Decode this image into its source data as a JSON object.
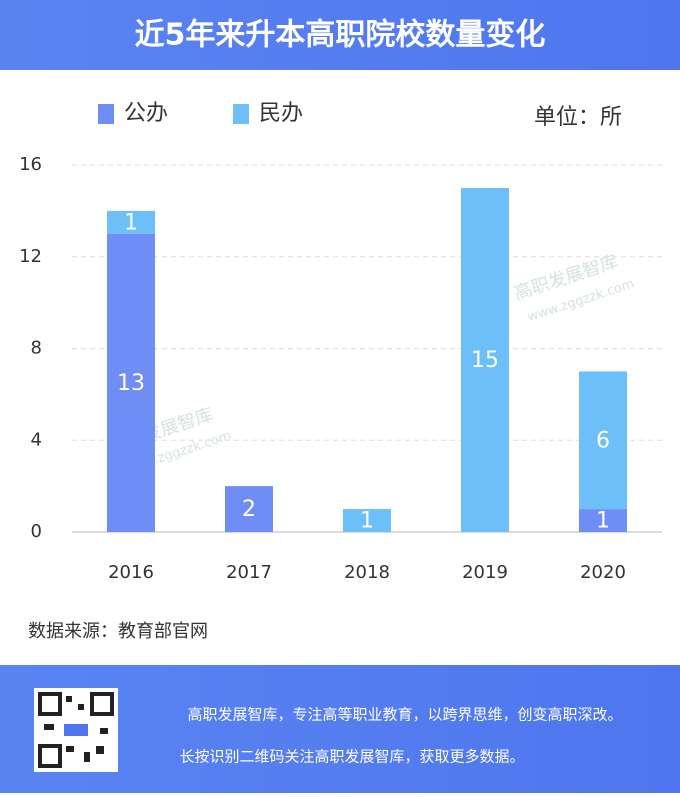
{
  "chart_data": {
    "type": "stacked_bar",
    "title": "近5年来升本高职院校数量变化",
    "unit_label": "单位：所",
    "categories": [
      "2016",
      "2017",
      "2018",
      "2019",
      "2020"
    ],
    "series": [
      {
        "name": "公办",
        "color": "#6f8ef5",
        "values": [
          13,
          2,
          0,
          0,
          1
        ]
      },
      {
        "name": "民办",
        "color": "#6cc0f7",
        "values": [
          1,
          0,
          1,
          15,
          6
        ]
      }
    ],
    "ylim": [
      0,
      16
    ],
    "yticks": [
      0,
      4,
      8,
      12,
      16
    ],
    "grid": true,
    "source": "数据来源：教育部官网",
    "watermark": {
      "name": "高职发展智库",
      "url": "www.zggzzk.com"
    },
    "footer": [
      "高职发展智库，专注高等职业教育，以跨界思维，创变高职深改。",
      "长按识别二维码关注高职发展智库，获取更多数据。"
    ]
  }
}
